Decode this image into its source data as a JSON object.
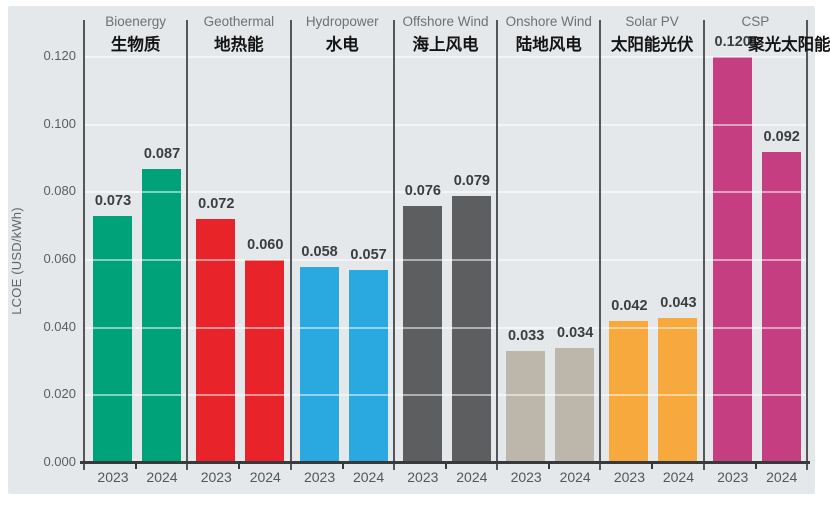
{
  "chart_data": {
    "type": "bar",
    "title": "",
    "ylabel": "LCOE (USD/kWh)",
    "ylim": [
      0,
      0.128
    ],
    "grid": true,
    "y_ticks": [
      "0.000",
      "0.020",
      "0.040",
      "0.060",
      "0.080",
      "0.100",
      "0.120"
    ],
    "x_year_labels": [
      "2023",
      "2024"
    ],
    "categories": [
      "Bioenergy",
      "Geothermal",
      "Hydropower",
      "Offshore Wind",
      "Onshore Wind",
      "Solar PV",
      "CSP"
    ],
    "groups": [
      {
        "name_en": "Bioenergy",
        "name_zh": "生物质",
        "color": "#00a27a",
        "values": [
          0.073,
          0.087
        ],
        "labels": [
          "0.073",
          "0.087"
        ]
      },
      {
        "name_en": "Geothermal",
        "name_zh": "地热能",
        "color": "#e8242a",
        "values": [
          0.072,
          0.06
        ],
        "labels": [
          "0.072",
          "0.060"
        ]
      },
      {
        "name_en": "Hydropower",
        "name_zh": "水电",
        "color": "#29a9e0",
        "values": [
          0.058,
          0.057
        ],
        "labels": [
          "0.058",
          "0.057"
        ]
      },
      {
        "name_en": "Offshore Wind",
        "name_zh": "海上风电",
        "color": "#5d5e60",
        "values": [
          0.076,
          0.079
        ],
        "labels": [
          "0.076",
          "0.079"
        ]
      },
      {
        "name_en": "Onshore Wind",
        "name_zh": "陆地风电",
        "color": "#bdb7ab",
        "values": [
          0.033,
          0.034
        ],
        "labels": [
          "0.033",
          "0.034"
        ]
      },
      {
        "name_en": "Solar PV",
        "name_zh": "太阳能光伏",
        "color": "#f7a93e",
        "values": [
          0.042,
          0.043
        ],
        "labels": [
          "0.042",
          "0.043"
        ]
      },
      {
        "name_en": "CSP",
        "name_zh": "聚光太阳能",
        "color": "#c53e81",
        "values": [
          0.12,
          0.092
        ],
        "labels": [
          "0.120",
          "0.092"
        ]
      }
    ],
    "colors": {
      "plot_background": "#e5e8ea",
      "axis_line": "#38393b",
      "separator_line": "#54565a",
      "value_label_text": "#3c3d3f",
      "tick_label_text": "#5b5d62"
    }
  }
}
